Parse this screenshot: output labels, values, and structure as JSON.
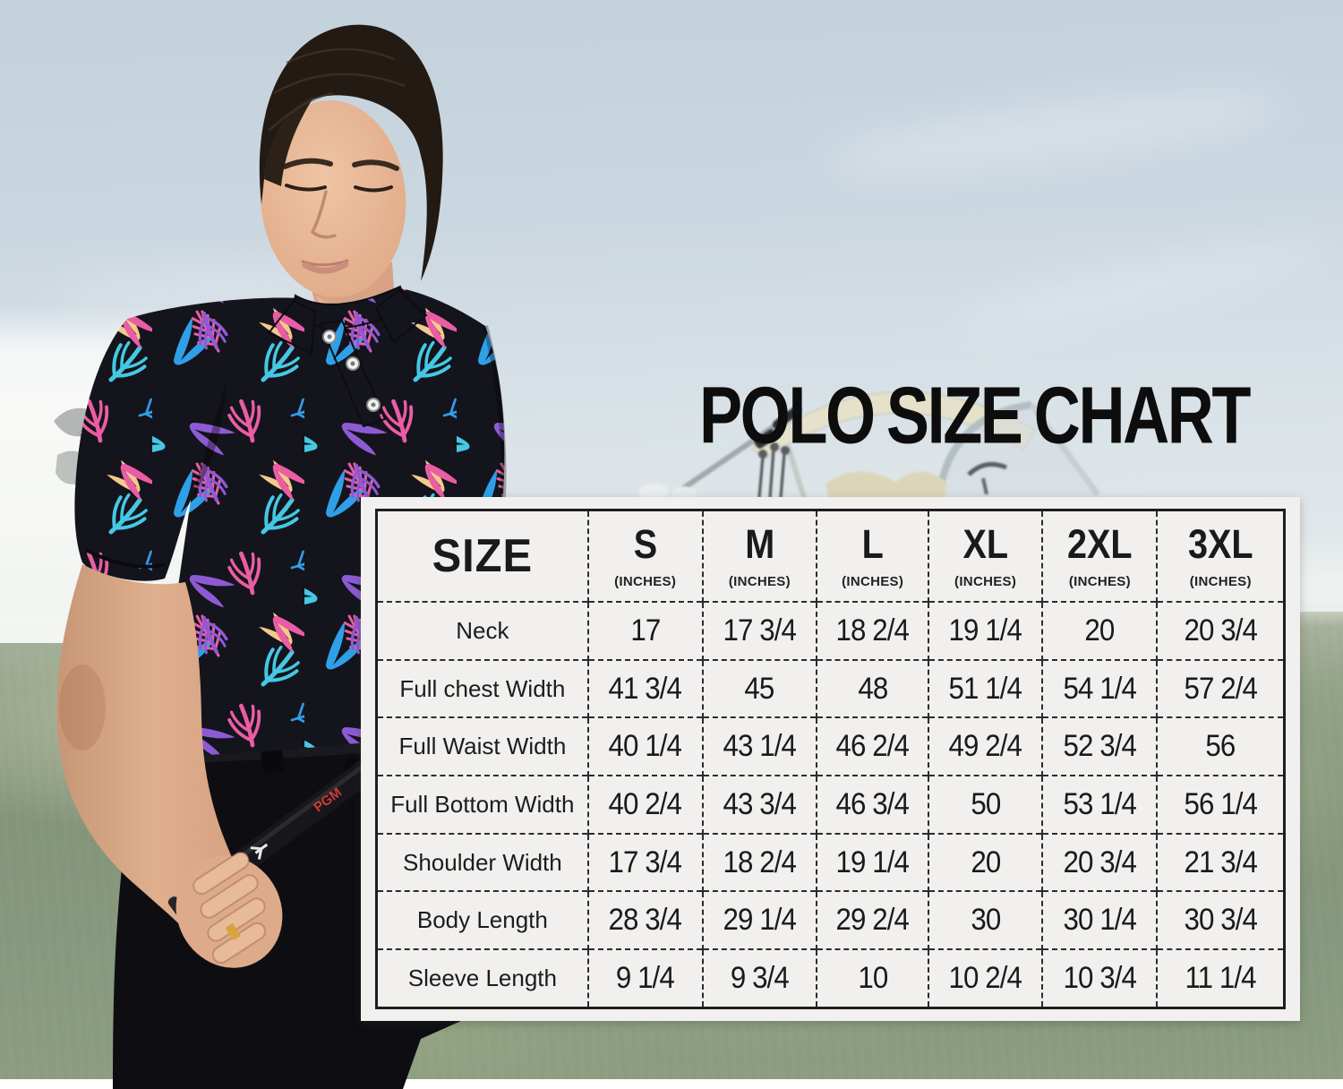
{
  "title": "POLO SIZE CHART",
  "table": {
    "corner_label": "SIZE",
    "columns": [
      {
        "size": "S",
        "unit": "(INCHES)"
      },
      {
        "size": "M",
        "unit": "(INCHES)"
      },
      {
        "size": "L",
        "unit": "(INCHES)"
      },
      {
        "size": "XL",
        "unit": "(INCHES)"
      },
      {
        "size": "2XL",
        "unit": "(INCHES)"
      },
      {
        "size": "3XL",
        "unit": "(INCHES)"
      }
    ],
    "rows": [
      {
        "label": "Neck",
        "values": [
          "17",
          "17 3/4",
          "18 2/4",
          "19 1/4",
          "20",
          "20 3/4"
        ]
      },
      {
        "label": "Full chest Width",
        "values": [
          "41 3/4",
          "45",
          "48",
          "51 1/4",
          "54 1/4",
          "57 2/4"
        ]
      },
      {
        "label": "Full Waist Width",
        "values": [
          "40 1/4",
          "43 1/4",
          "46 2/4",
          "49 2/4",
          "52 3/4",
          "56"
        ]
      },
      {
        "label": "Full Bottom Width",
        "values": [
          "40 2/4",
          "43 3/4",
          "46 3/4",
          "50",
          "53 1/4",
          "56 1/4"
        ]
      },
      {
        "label": "Shoulder Width",
        "values": [
          "17 3/4",
          "18 2/4",
          "19 1/4",
          "20",
          "20 3/4",
          "21 3/4"
        ]
      },
      {
        "label": "Body Length",
        "values": [
          "28 3/4",
          "29 1/4",
          "29 2/4",
          "30",
          "30 1/4",
          "30 3/4"
        ]
      },
      {
        "label": "Sleeve Length",
        "values": [
          "9 1/4",
          "9 3/4",
          "10",
          "10 2/4",
          "10 3/4",
          "11 1/4"
        ]
      }
    ]
  },
  "scene": {
    "club_grip_brand": "PGM"
  },
  "colors": {
    "sky_top": "#c3d1dc",
    "sky_bottom": "#e6ebec",
    "grass": "#84957a",
    "panel_bg": "#f1f0ee",
    "table_line": "#2c2c2c",
    "title_color": "#0d0d0d",
    "shirt_base": "#14141c",
    "leaf_blue": "#2f9fe8",
    "leaf_cyan": "#45c8e4",
    "leaf_pink": "#ea5da4",
    "leaf_purple": "#8e5ad4",
    "leaf_peach": "#f4c98e",
    "pants": "#0e0e12",
    "skin": "#e3b28f",
    "grip_brand_red": "#cf3a3a"
  },
  "chart_data": {
    "type": "table",
    "title": "POLO SIZE CHART",
    "unit": "inches",
    "columns": [
      "S",
      "M",
      "L",
      "XL",
      "2XL",
      "3XL"
    ],
    "measurements": [
      {
        "label": "Neck",
        "values": [
          "17",
          "17 3/4",
          "18 2/4",
          "19 1/4",
          "20",
          "20 3/4"
        ]
      },
      {
        "label": "Full chest Width",
        "values": [
          "41 3/4",
          "45",
          "48",
          "51 1/4",
          "54 1/4",
          "57 2/4"
        ]
      },
      {
        "label": "Full Waist Width",
        "values": [
          "40 1/4",
          "43 1/4",
          "46 2/4",
          "49 2/4",
          "52 3/4",
          "56"
        ]
      },
      {
        "label": "Full Bottom Width",
        "values": [
          "40 2/4",
          "43 3/4",
          "46 3/4",
          "50",
          "53 1/4",
          "56 1/4"
        ]
      },
      {
        "label": "Shoulder Width",
        "values": [
          "17 3/4",
          "18 2/4",
          "19 1/4",
          "20",
          "20 3/4",
          "21 3/4"
        ]
      },
      {
        "label": "Body Length",
        "values": [
          "28 3/4",
          "29 1/4",
          "29 2/4",
          "30",
          "30 1/4",
          "30 3/4"
        ]
      },
      {
        "label": "Sleeve Length",
        "values": [
          "9 1/4",
          "9 3/4",
          "10",
          "10 2/4",
          "10 3/4",
          "11 1/4"
        ]
      }
    ]
  }
}
